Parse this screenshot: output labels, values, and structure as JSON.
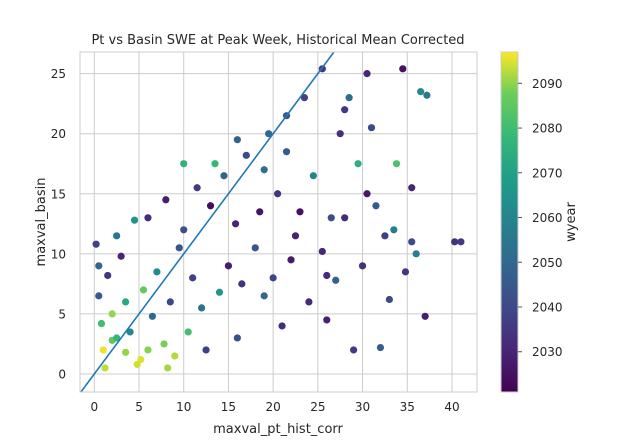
{
  "chart_data": {
    "type": "scatter",
    "title": "Pt vs Basin SWE at Peak Week, Historical Mean Corrected",
    "xlabel": "maxval_pt_hist_corr",
    "ylabel": "maxval_basin",
    "xlim": [
      -1.6,
      42.8
    ],
    "ylim": [
      -1.5,
      26.8
    ],
    "x_ticks": [
      0,
      5,
      10,
      15,
      20,
      25,
      30,
      35,
      40
    ],
    "y_ticks": [
      0,
      5,
      10,
      15,
      20,
      25
    ],
    "grid": true,
    "colorbar": {
      "label": "wyear",
      "colormap": "viridis",
      "range": [
        2021,
        2097
      ],
      "ticks": [
        2030,
        2040,
        2050,
        2060,
        2070,
        2080,
        2090
      ]
    },
    "reference_line": {
      "slope": 1,
      "intercept": 0,
      "color": "#1f77b4"
    },
    "points": [
      {
        "x": 1.2,
        "y": 0.5,
        "c": 2093
      },
      {
        "x": 3.5,
        "y": 1.8,
        "c": 2090
      },
      {
        "x": 5.2,
        "y": 1.2,
        "c": 2095
      },
      {
        "x": 7.8,
        "y": 2.5,
        "c": 2088
      },
      {
        "x": 9.0,
        "y": 1.5,
        "c": 2092
      },
      {
        "x": 2.0,
        "y": 2.8,
        "c": 2085
      },
      {
        "x": 0.8,
        "y": 4.2,
        "c": 2080
      },
      {
        "x": 4.0,
        "y": 3.5,
        "c": 2060
      },
      {
        "x": 6.5,
        "y": 4.8,
        "c": 2050
      },
      {
        "x": 8.5,
        "y": 6.0,
        "c": 2040
      },
      {
        "x": 0.5,
        "y": 6.5,
        "c": 2045
      },
      {
        "x": 1.5,
        "y": 8.2,
        "c": 2035
      },
      {
        "x": 3.0,
        "y": 9.8,
        "c": 2030
      },
      {
        "x": 0.2,
        "y": 10.8,
        "c": 2038
      },
      {
        "x": 2.5,
        "y": 11.5,
        "c": 2055
      },
      {
        "x": 4.5,
        "y": 12.8,
        "c": 2065
      },
      {
        "x": 6.0,
        "y": 13.0,
        "c": 2032
      },
      {
        "x": 8.0,
        "y": 14.5,
        "c": 2028
      },
      {
        "x": 10.0,
        "y": 12.0,
        "c": 2042
      },
      {
        "x": 11.5,
        "y": 15.5,
        "c": 2036
      },
      {
        "x": 13.0,
        "y": 14.0,
        "c": 2024
      },
      {
        "x": 14.5,
        "y": 16.5,
        "c": 2048
      },
      {
        "x": 15.8,
        "y": 12.5,
        "c": 2030
      },
      {
        "x": 17.0,
        "y": 18.2,
        "c": 2040
      },
      {
        "x": 18.5,
        "y": 13.5,
        "c": 2026
      },
      {
        "x": 19.5,
        "y": 20.0,
        "c": 2050
      },
      {
        "x": 20.5,
        "y": 15.0,
        "c": 2034
      },
      {
        "x": 21.5,
        "y": 21.5,
        "c": 2044
      },
      {
        "x": 22.5,
        "y": 11.5,
        "c": 2029
      },
      {
        "x": 23.5,
        "y": 23.0,
        "c": 2038
      },
      {
        "x": 24.5,
        "y": 16.5,
        "c": 2060
      },
      {
        "x": 25.5,
        "y": 25.4,
        "c": 2035
      },
      {
        "x": 26.5,
        "y": 13.0,
        "c": 2041
      },
      {
        "x": 27.5,
        "y": 20.0,
        "c": 2033
      },
      {
        "x": 28.5,
        "y": 23.0,
        "c": 2052
      },
      {
        "x": 29.5,
        "y": 17.5,
        "c": 2075
      },
      {
        "x": 30.5,
        "y": 25.0,
        "c": 2030
      },
      {
        "x": 31.5,
        "y": 14.0,
        "c": 2045
      },
      {
        "x": 32.5,
        "y": 11.5,
        "c": 2037
      },
      {
        "x": 33.5,
        "y": 12.0,
        "c": 2058
      },
      {
        "x": 34.5,
        "y": 25.4,
        "c": 2025
      },
      {
        "x": 35.5,
        "y": 11.0,
        "c": 2040
      },
      {
        "x": 36.5,
        "y": 23.5,
        "c": 2062
      },
      {
        "x": 37.2,
        "y": 23.2,
        "c": 2055
      },
      {
        "x": 40.3,
        "y": 11.0,
        "c": 2033
      },
      {
        "x": 41.0,
        "y": 11.0,
        "c": 2036
      },
      {
        "x": 37.0,
        "y": 4.8,
        "c": 2028
      },
      {
        "x": 36.0,
        "y": 10.0,
        "c": 2057
      },
      {
        "x": 34.8,
        "y": 8.5,
        "c": 2035
      },
      {
        "x": 29.0,
        "y": 2.0,
        "c": 2036
      },
      {
        "x": 32.0,
        "y": 2.2,
        "c": 2046
      },
      {
        "x": 24.0,
        "y": 6.0,
        "c": 2031
      },
      {
        "x": 21.0,
        "y": 4.0,
        "c": 2032
      },
      {
        "x": 19.0,
        "y": 6.5,
        "c": 2050
      },
      {
        "x": 16.0,
        "y": 3.0,
        "c": 2042
      },
      {
        "x": 12.5,
        "y": 2.0,
        "c": 2037
      },
      {
        "x": 10.5,
        "y": 3.5,
        "c": 2081
      },
      {
        "x": 15.0,
        "y": 9.0,
        "c": 2028
      },
      {
        "x": 18.0,
        "y": 10.5,
        "c": 2044
      },
      {
        "x": 20.0,
        "y": 8.0,
        "c": 2039
      },
      {
        "x": 22.0,
        "y": 9.5,
        "c": 2027
      },
      {
        "x": 25.5,
        "y": 10.2,
        "c": 2030
      },
      {
        "x": 27.0,
        "y": 7.8,
        "c": 2048
      },
      {
        "x": 30.0,
        "y": 9.0,
        "c": 2033
      },
      {
        "x": 33.0,
        "y": 6.2,
        "c": 2040
      },
      {
        "x": 26.0,
        "y": 4.5,
        "c": 2029
      },
      {
        "x": 14.0,
        "y": 6.8,
        "c": 2066
      },
      {
        "x": 11.0,
        "y": 8.0,
        "c": 2038
      },
      {
        "x": 9.5,
        "y": 10.5,
        "c": 2043
      },
      {
        "x": 7.0,
        "y": 8.5,
        "c": 2062
      },
      {
        "x": 5.5,
        "y": 7.0,
        "c": 2086
      },
      {
        "x": 3.5,
        "y": 6.0,
        "c": 2072
      },
      {
        "x": 2.0,
        "y": 5.0,
        "c": 2090
      },
      {
        "x": 1.0,
        "y": 2.0,
        "c": 2096
      },
      {
        "x": 4.8,
        "y": 0.8,
        "c": 2094
      },
      {
        "x": 8.2,
        "y": 0.5,
        "c": 2091
      },
      {
        "x": 12.0,
        "y": 5.5,
        "c": 2053
      },
      {
        "x": 16.5,
        "y": 7.5,
        "c": 2034
      },
      {
        "x": 23.0,
        "y": 13.5,
        "c": 2025
      },
      {
        "x": 19.0,
        "y": 17.0,
        "c": 2052
      },
      {
        "x": 13.5,
        "y": 17.5,
        "c": 2078
      },
      {
        "x": 10.0,
        "y": 17.5,
        "c": 2076
      },
      {
        "x": 16.0,
        "y": 19.5,
        "c": 2048
      },
      {
        "x": 21.5,
        "y": 18.5,
        "c": 2046
      },
      {
        "x": 28.0,
        "y": 22.0,
        "c": 2035
      },
      {
        "x": 31.0,
        "y": 20.5,
        "c": 2040
      },
      {
        "x": 33.8,
        "y": 17.5,
        "c": 2082
      },
      {
        "x": 35.5,
        "y": 15.5,
        "c": 2030
      },
      {
        "x": 30.5,
        "y": 15.0,
        "c": 2026
      },
      {
        "x": 28.0,
        "y": 13.0,
        "c": 2032
      },
      {
        "x": 26.0,
        "y": 8.2,
        "c": 2031
      },
      {
        "x": 0.5,
        "y": 9.0,
        "c": 2049
      },
      {
        "x": 6.0,
        "y": 2.0,
        "c": 2089
      },
      {
        "x": 2.5,
        "y": 3.0,
        "c": 2078
      }
    ]
  }
}
